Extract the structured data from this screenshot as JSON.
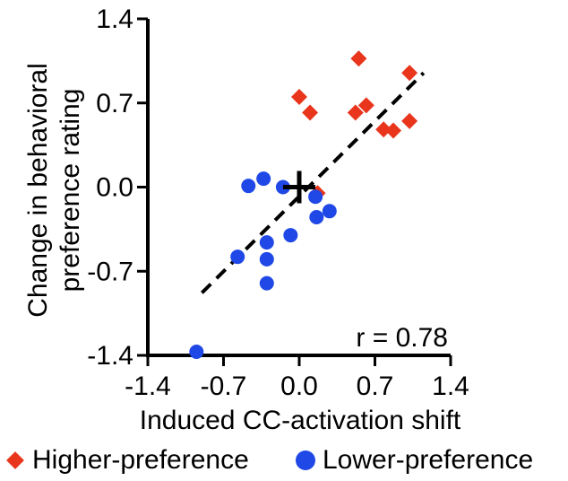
{
  "chart_data": {
    "type": "scatter",
    "xlabel": "Induced CC-activation shift",
    "ylabel": [
      "Change in behavioral",
      "preference rating"
    ],
    "xlim": [
      -1.4,
      1.4
    ],
    "ylim": [
      -1.4,
      1.4
    ],
    "xticks": [
      "-1.4",
      "-0.7",
      "0.0",
      "0.7",
      "1.4"
    ],
    "yticks": [
      "1.4",
      "0.7",
      "0.0",
      "-0.7",
      "-1.4"
    ],
    "annotation": "r = 0.78",
    "colors": {
      "higher": "#e8351c",
      "lower": "#1f48e6",
      "fit": "#000000"
    },
    "fit_line": {
      "x": [
        -0.9,
        1.15
      ],
      "y": [
        -0.88,
        0.95
      ],
      "style": "dashed"
    },
    "mean_marker": {
      "x": 0.0,
      "y": 0.0,
      "shape": "cross"
    },
    "legend": {
      "placement": "bottom"
    },
    "series": [
      {
        "name": "Higher-preference",
        "marker": "diamond",
        "points": [
          {
            "x": 0.0,
            "y": 0.75
          },
          {
            "x": 0.1,
            "y": 0.62
          },
          {
            "x": 0.55,
            "y": 1.07
          },
          {
            "x": 0.52,
            "y": 0.62
          },
          {
            "x": 0.62,
            "y": 0.68
          },
          {
            "x": 0.78,
            "y": 0.48
          },
          {
            "x": 0.87,
            "y": 0.47
          },
          {
            "x": 1.02,
            "y": 0.95
          },
          {
            "x": 1.02,
            "y": 0.55
          },
          {
            "x": 0.17,
            "y": -0.05
          }
        ]
      },
      {
        "name": "Lower-preference",
        "marker": "circle",
        "points": [
          {
            "x": -0.47,
            "y": 0.01
          },
          {
            "x": -0.33,
            "y": 0.07
          },
          {
            "x": -0.15,
            "y": 0.0
          },
          {
            "x": 0.15,
            "y": -0.08
          },
          {
            "x": 0.28,
            "y": -0.2
          },
          {
            "x": 0.16,
            "y": -0.25
          },
          {
            "x": -0.08,
            "y": -0.4
          },
          {
            "x": -0.3,
            "y": -0.46
          },
          {
            "x": -0.57,
            "y": -0.58
          },
          {
            "x": -0.3,
            "y": -0.6
          },
          {
            "x": -0.3,
            "y": -0.8
          },
          {
            "x": -0.95,
            "y": -1.37
          }
        ]
      }
    ]
  }
}
